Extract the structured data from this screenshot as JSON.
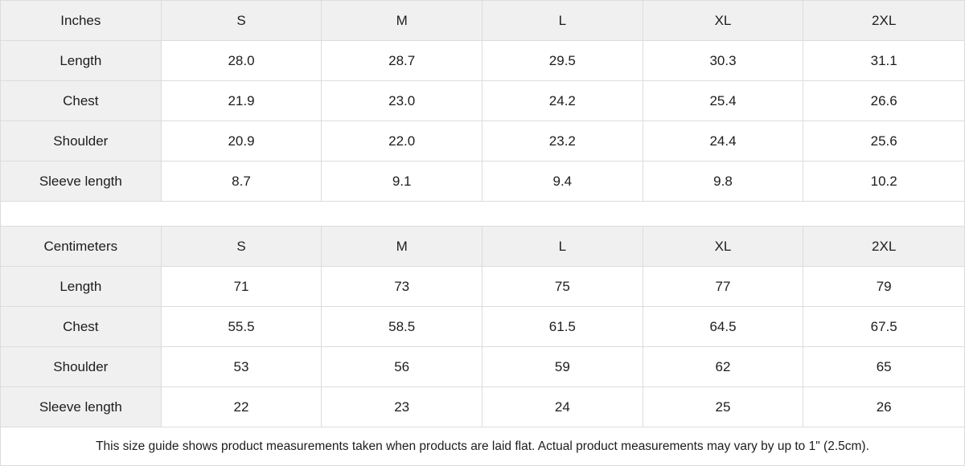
{
  "colors": {
    "header_bg": "#f0f0f0",
    "cell_bg": "#ffffff",
    "border": "#dcdcdc",
    "text": "#1d1d1f"
  },
  "size_guide": {
    "tables": [
      {
        "unit": "Inches",
        "sizes": [
          "S",
          "M",
          "L",
          "XL",
          "2XL"
        ],
        "rows": [
          {
            "label": "Length",
            "values": [
              "28.0",
              "28.7",
              "29.5",
              "30.3",
              "31.1"
            ]
          },
          {
            "label": "Chest",
            "values": [
              "21.9",
              "23.0",
              "24.2",
              "25.4",
              "26.6"
            ]
          },
          {
            "label": "Shoulder",
            "values": [
              "20.9",
              "22.0",
              "23.2",
              "24.4",
              "25.6"
            ]
          },
          {
            "label": "Sleeve length",
            "values": [
              "8.7",
              "9.1",
              "9.4",
              "9.8",
              "10.2"
            ]
          }
        ]
      },
      {
        "unit": "Centimeters",
        "sizes": [
          "S",
          "M",
          "L",
          "XL",
          "2XL"
        ],
        "rows": [
          {
            "label": "Length",
            "values": [
              "71",
              "73",
              "75",
              "77",
              "79"
            ]
          },
          {
            "label": "Chest",
            "values": [
              "55.5",
              "58.5",
              "61.5",
              "64.5",
              "67.5"
            ]
          },
          {
            "label": "Shoulder",
            "values": [
              "53",
              "56",
              "59",
              "62",
              "65"
            ]
          },
          {
            "label": "Sleeve length",
            "values": [
              "22",
              "23",
              "24",
              "25",
              "26"
            ]
          }
        ]
      }
    ],
    "note": "This size guide shows product measurements taken when products are laid flat.  Actual product measurements may vary by up to 1\" (2.5cm)."
  }
}
